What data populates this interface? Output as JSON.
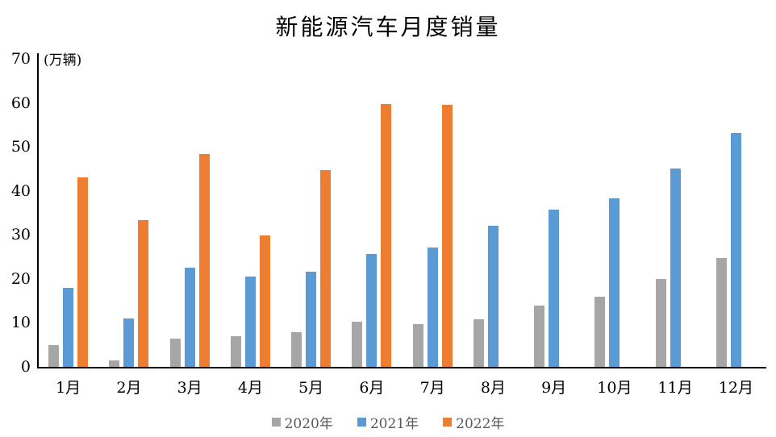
{
  "chart_data": {
    "type": "bar",
    "title": "新能源汽车月度销量",
    "ylabel": "(万辆)",
    "xlabel": "",
    "ylim": [
      0,
      70
    ],
    "y_ticks": [
      0,
      10,
      20,
      30,
      40,
      50,
      60,
      70
    ],
    "grid": false,
    "legend_position": "bottom",
    "categories": [
      "1月",
      "2月",
      "3月",
      "4月",
      "5月",
      "6月",
      "7月",
      "8月",
      "9月",
      "10月",
      "11月",
      "12月"
    ],
    "series": [
      {
        "name": "2020年",
        "color": "#a6a6a6",
        "values": [
          5.0,
          1.5,
          6.4,
          7.0,
          7.8,
          10.2,
          9.7,
          10.8,
          13.9,
          16.0,
          20.0,
          24.7
        ]
      },
      {
        "name": "2021年",
        "color": "#5b9bd5",
        "values": [
          17.9,
          11.0,
          22.6,
          20.6,
          21.7,
          25.6,
          27.1,
          32.1,
          35.7,
          38.3,
          45.1,
          53.2
        ]
      },
      {
        "name": "2022年",
        "color": "#ed7d31",
        "values": [
          43.1,
          33.4,
          48.4,
          29.9,
          44.8,
          59.8,
          59.5,
          null,
          null,
          null,
          null,
          null
        ]
      }
    ]
  }
}
